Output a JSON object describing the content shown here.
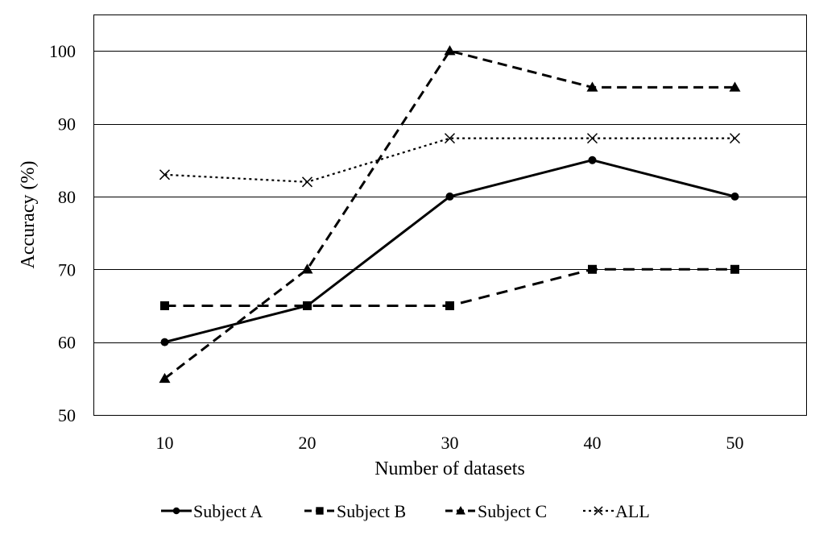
{
  "chart_data": {
    "type": "line",
    "title": "",
    "xlabel": "Number of datasets",
    "ylabel": "Accuracy (%)",
    "x": [
      10,
      20,
      30,
      40,
      50
    ],
    "x_tick_labels": [
      "10",
      "20",
      "30",
      "40",
      "50"
    ],
    "ylim": [
      50,
      105
    ],
    "y_ticks": [
      50,
      60,
      70,
      80,
      90,
      100
    ],
    "y_tick_labels": [
      "50",
      "60",
      "70",
      "80",
      "90",
      "100"
    ],
    "grid": "horizontal",
    "legend_position": "bottom",
    "series": [
      {
        "name": "Subject A",
        "values": [
          60,
          65,
          80,
          85,
          80
        ],
        "marker": "circle",
        "dash": "solid",
        "color": "#000000"
      },
      {
        "name": "Subject B",
        "values": [
          65,
          65,
          65,
          70,
          70
        ],
        "marker": "square",
        "dash": "dash",
        "color": "#000000"
      },
      {
        "name": "Subject C",
        "values": [
          55,
          70,
          100,
          95,
          95
        ],
        "marker": "triangle",
        "dash": "longdash",
        "color": "#000000"
      },
      {
        "name": "ALL",
        "values": [
          83,
          82,
          88,
          88,
          88
        ],
        "marker": "x",
        "dash": "dot",
        "color": "#000000"
      }
    ]
  }
}
